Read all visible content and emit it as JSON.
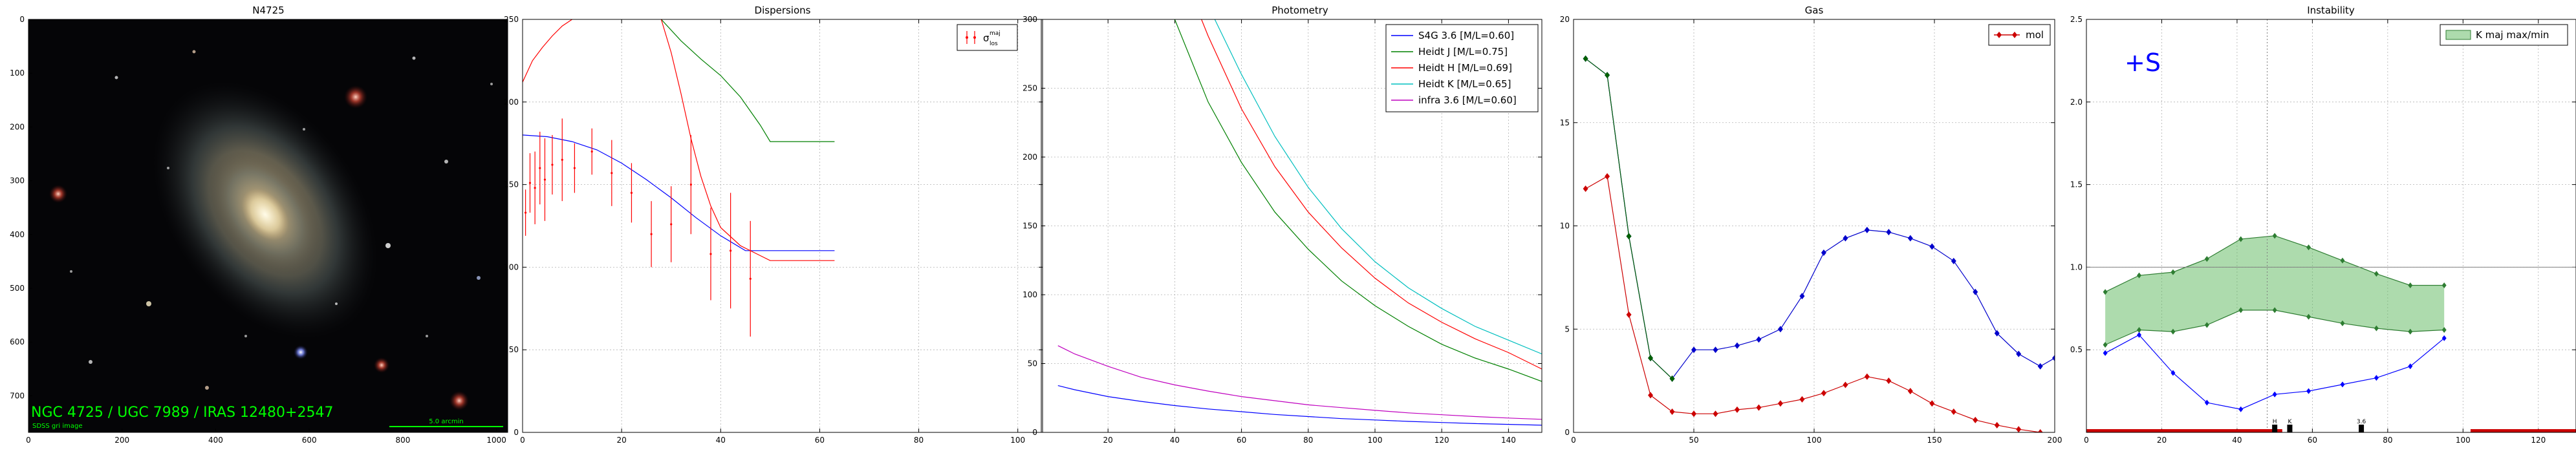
{
  "chart_data": [
    {
      "type": "image",
      "title": "N4725",
      "xlim": [
        0,
        1024
      ],
      "ylim": [
        768,
        0
      ],
      "xticks": [
        0,
        200,
        400,
        600,
        800,
        1000
      ],
      "yticks": [
        0,
        100,
        200,
        300,
        400,
        500,
        600,
        700
      ],
      "caption": "NGC 4725 / UGC 7989 / IRAS 12480+2547",
      "subcaption": "SDSS gri image",
      "scalebar_label": "5.0 arcmin"
    },
    {
      "type": "line",
      "title": "Dispersions",
      "xlim": [
        0,
        105
      ],
      "ylim": [
        0,
        250
      ],
      "xticks": [
        0,
        20,
        40,
        60,
        80,
        100
      ],
      "yticks": [
        0,
        50,
        100,
        150,
        200,
        250
      ],
      "legend": "top-right",
      "legend_label": "σ",
      "legend_label_sup": "maj",
      "legend_label_sub": "los",
      "series": [
        {
          "color": "#0000ff",
          "x": [
            0,
            5,
            10,
            15,
            20,
            25,
            30,
            35,
            40,
            45,
            50,
            55,
            60,
            63
          ],
          "y": [
            180,
            179,
            176,
            171,
            163,
            153,
            142,
            130,
            119,
            110,
            110,
            110,
            110,
            110
          ]
        },
        {
          "color": "#008000",
          "x": [
            28,
            32,
            36,
            40,
            44,
            48,
            50,
            52,
            63
          ],
          "y": [
            250,
            237,
            226,
            216,
            203,
            186,
            176,
            176,
            176
          ]
        },
        {
          "color": "#ff0000",
          "x": [
            0,
            2,
            4,
            6,
            8,
            10,
            12
          ],
          "y": [
            212,
            225,
            233,
            240,
            246,
            250,
            254
          ]
        },
        {
          "color": "#ff0000",
          "x": [
            28,
            30,
            32,
            34,
            36,
            38,
            40,
            44,
            48,
            50,
            52,
            55,
            63
          ],
          "y": [
            250,
            230,
            205,
            178,
            155,
            137,
            124,
            113,
            107,
            104,
            104,
            104,
            104
          ]
        }
      ],
      "points": {
        "color": "#ff0000",
        "x": [
          0.6,
          1.5,
          2.5,
          3.5,
          4.5,
          6,
          8,
          10.5,
          14,
          18,
          22,
          26,
          30,
          34,
          38,
          42,
          46
        ],
        "y": [
          133,
          151,
          148,
          160,
          153,
          162,
          165,
          160,
          170,
          157,
          145,
          120,
          126,
          150,
          108,
          110,
          93
        ],
        "err": [
          14,
          18,
          22,
          22,
          25,
          18,
          25,
          15,
          14,
          20,
          18,
          20,
          23,
          30,
          28,
          35,
          35
        ]
      }
    },
    {
      "type": "line",
      "title": "Photometry",
      "xlim": [
        0,
        150
      ],
      "ylim": [
        0,
        300
      ],
      "xticks": [
        20,
        40,
        60,
        80,
        100,
        120,
        140
      ],
      "yticks": [
        0,
        50,
        100,
        150,
        200,
        250,
        300
      ],
      "legend": "top-right",
      "series": [
        {
          "name": "S4G 3.6 [M/L=0.60]",
          "color": "#0000ff",
          "x": [
            5,
            10,
            20,
            30,
            40,
            50,
            60,
            70,
            80,
            90,
            100,
            110,
            120,
            130,
            140,
            150
          ],
          "y": [
            34,
            31,
            26,
            22.5,
            19.5,
            17,
            15,
            13,
            11.5,
            10,
            9,
            8,
            7.2,
            6.4,
            5.8,
            5.2
          ]
        },
        {
          "name": "Heidt J [M/L=0.75]",
          "color": "#008000",
          "x": [
            40,
            50,
            60,
            70,
            80,
            90,
            100,
            110,
            120,
            130,
            140,
            150
          ],
          "y": [
            300,
            240,
            196,
            160,
            133,
            110,
            92,
            77,
            64,
            54,
            46,
            37
          ]
        },
        {
          "name": "Heidt H [M/L=0.69]",
          "color": "#ff0000",
          "x": [
            48,
            50,
            60,
            70,
            80,
            90,
            100,
            110,
            120,
            130,
            140,
            150
          ],
          "y": [
            300,
            288,
            235,
            193,
            160,
            134,
            112,
            94,
            80,
            68,
            58,
            46
          ]
        },
        {
          "name": "Heidt K [M/L=0.65]",
          "color": "#00bfbf",
          "x": [
            52,
            55,
            60,
            70,
            80,
            90,
            100,
            110,
            120,
            130,
            140,
            150
          ],
          "y": [
            300,
            285,
            260,
            215,
            178,
            148,
            124,
            105,
            90,
            77,
            67,
            57
          ]
        },
        {
          "name": "infra 3.6 [M/L=0.60]",
          "color": "#bf00bf",
          "x": [
            5,
            10,
            20,
            30,
            40,
            50,
            60,
            70,
            80,
            90,
            100,
            110,
            120,
            130,
            140,
            150
          ],
          "y": [
            63,
            57,
            48,
            40,
            34.5,
            30,
            26,
            23,
            20,
            18,
            16,
            14.2,
            12.8,
            11.5,
            10.4,
            9.5
          ]
        }
      ]
    },
    {
      "type": "line",
      "title": "Gas",
      "xlim": [
        0,
        200
      ],
      "ylim": [
        0,
        20
      ],
      "xticks": [
        0,
        50,
        100,
        150,
        200
      ],
      "yticks": [
        0,
        5,
        10,
        15,
        20
      ],
      "legend": "top-right",
      "series": [
        {
          "name": "mol",
          "color": "#cc0000",
          "x": [
            5,
            14,
            23,
            32,
            41,
            50,
            59,
            68,
            77,
            86,
            95,
            104,
            113,
            122,
            131,
            140,
            149,
            158,
            167,
            176,
            185,
            194
          ],
          "y": [
            11.8,
            12.4,
            5.7,
            1.8,
            1.0,
            0.9,
            0.9,
            1.1,
            1.2,
            1.4,
            1.6,
            1.9,
            2.3,
            2.7,
            2.5,
            2.0,
            1.4,
            1.0,
            0.6,
            0.35,
            0.15,
            0.0
          ]
        },
        {
          "color": "#0000cc",
          "x": [
            5,
            14,
            23,
            32,
            41,
            50,
            59,
            68,
            77,
            86,
            95,
            104,
            113,
            122,
            131,
            140,
            149,
            158,
            167,
            176,
            185,
            194,
            200
          ],
          "y": [
            18.1,
            17.3,
            9.5,
            3.6,
            2.6,
            4.0,
            4.0,
            4.2,
            4.5,
            5.0,
            6.6,
            8.7,
            9.4,
            9.8,
            9.7,
            9.4,
            9.0,
            8.3,
            6.8,
            4.8,
            3.8,
            3.2,
            3.6
          ]
        },
        {
          "color": "#006000",
          "x": [
            5,
            14,
            23,
            32,
            41
          ],
          "y": [
            18.1,
            17.3,
            9.5,
            3.6,
            2.6
          ]
        }
      ]
    },
    {
      "type": "area",
      "title": "Instability",
      "xlim": [
        0,
        130
      ],
      "ylim": [
        0,
        2.5
      ],
      "xticks": [
        0,
        20,
        40,
        60,
        80,
        100,
        120
      ],
      "yticks": [
        0.5,
        1.0,
        1.5,
        2.0,
        2.5
      ],
      "legend": "top-right",
      "annotation": "+S",
      "hline": 1.0,
      "vline": 48,
      "band": {
        "name": "K maj max/min",
        "color": "#5cb85c",
        "x": [
          5,
          14,
          23,
          32,
          41,
          50,
          59,
          68,
          77,
          86,
          95
        ],
        "upper": [
          0.85,
          0.95,
          0.97,
          1.05,
          1.17,
          1.19,
          1.12,
          1.04,
          0.96,
          0.89,
          0.89
        ],
        "lower": [
          0.53,
          0.62,
          0.61,
          0.65,
          0.74,
          0.74,
          0.7,
          0.66,
          0.63,
          0.61,
          0.62
        ]
      },
      "series": [
        {
          "color": "#0000ff",
          "x": [
            5,
            14,
            23,
            32,
            41,
            50,
            59,
            68,
            77,
            86,
            95
          ],
          "y": [
            0.48,
            0.59,
            0.36,
            0.18,
            0.14,
            0.23,
            0.25,
            0.29,
            0.33,
            0.4,
            0.57
          ]
        }
      ],
      "markers": [
        {
          "label": "H",
          "x": 50
        },
        {
          "label": "K",
          "x": 54
        },
        {
          "label": "3.6",
          "x": 73
        }
      ],
      "bars": [
        {
          "x0": 0,
          "x1": 52,
          "color": "#cc0000"
        },
        {
          "x0": 102,
          "x1": 130,
          "color": "#cc0000"
        }
      ]
    }
  ]
}
